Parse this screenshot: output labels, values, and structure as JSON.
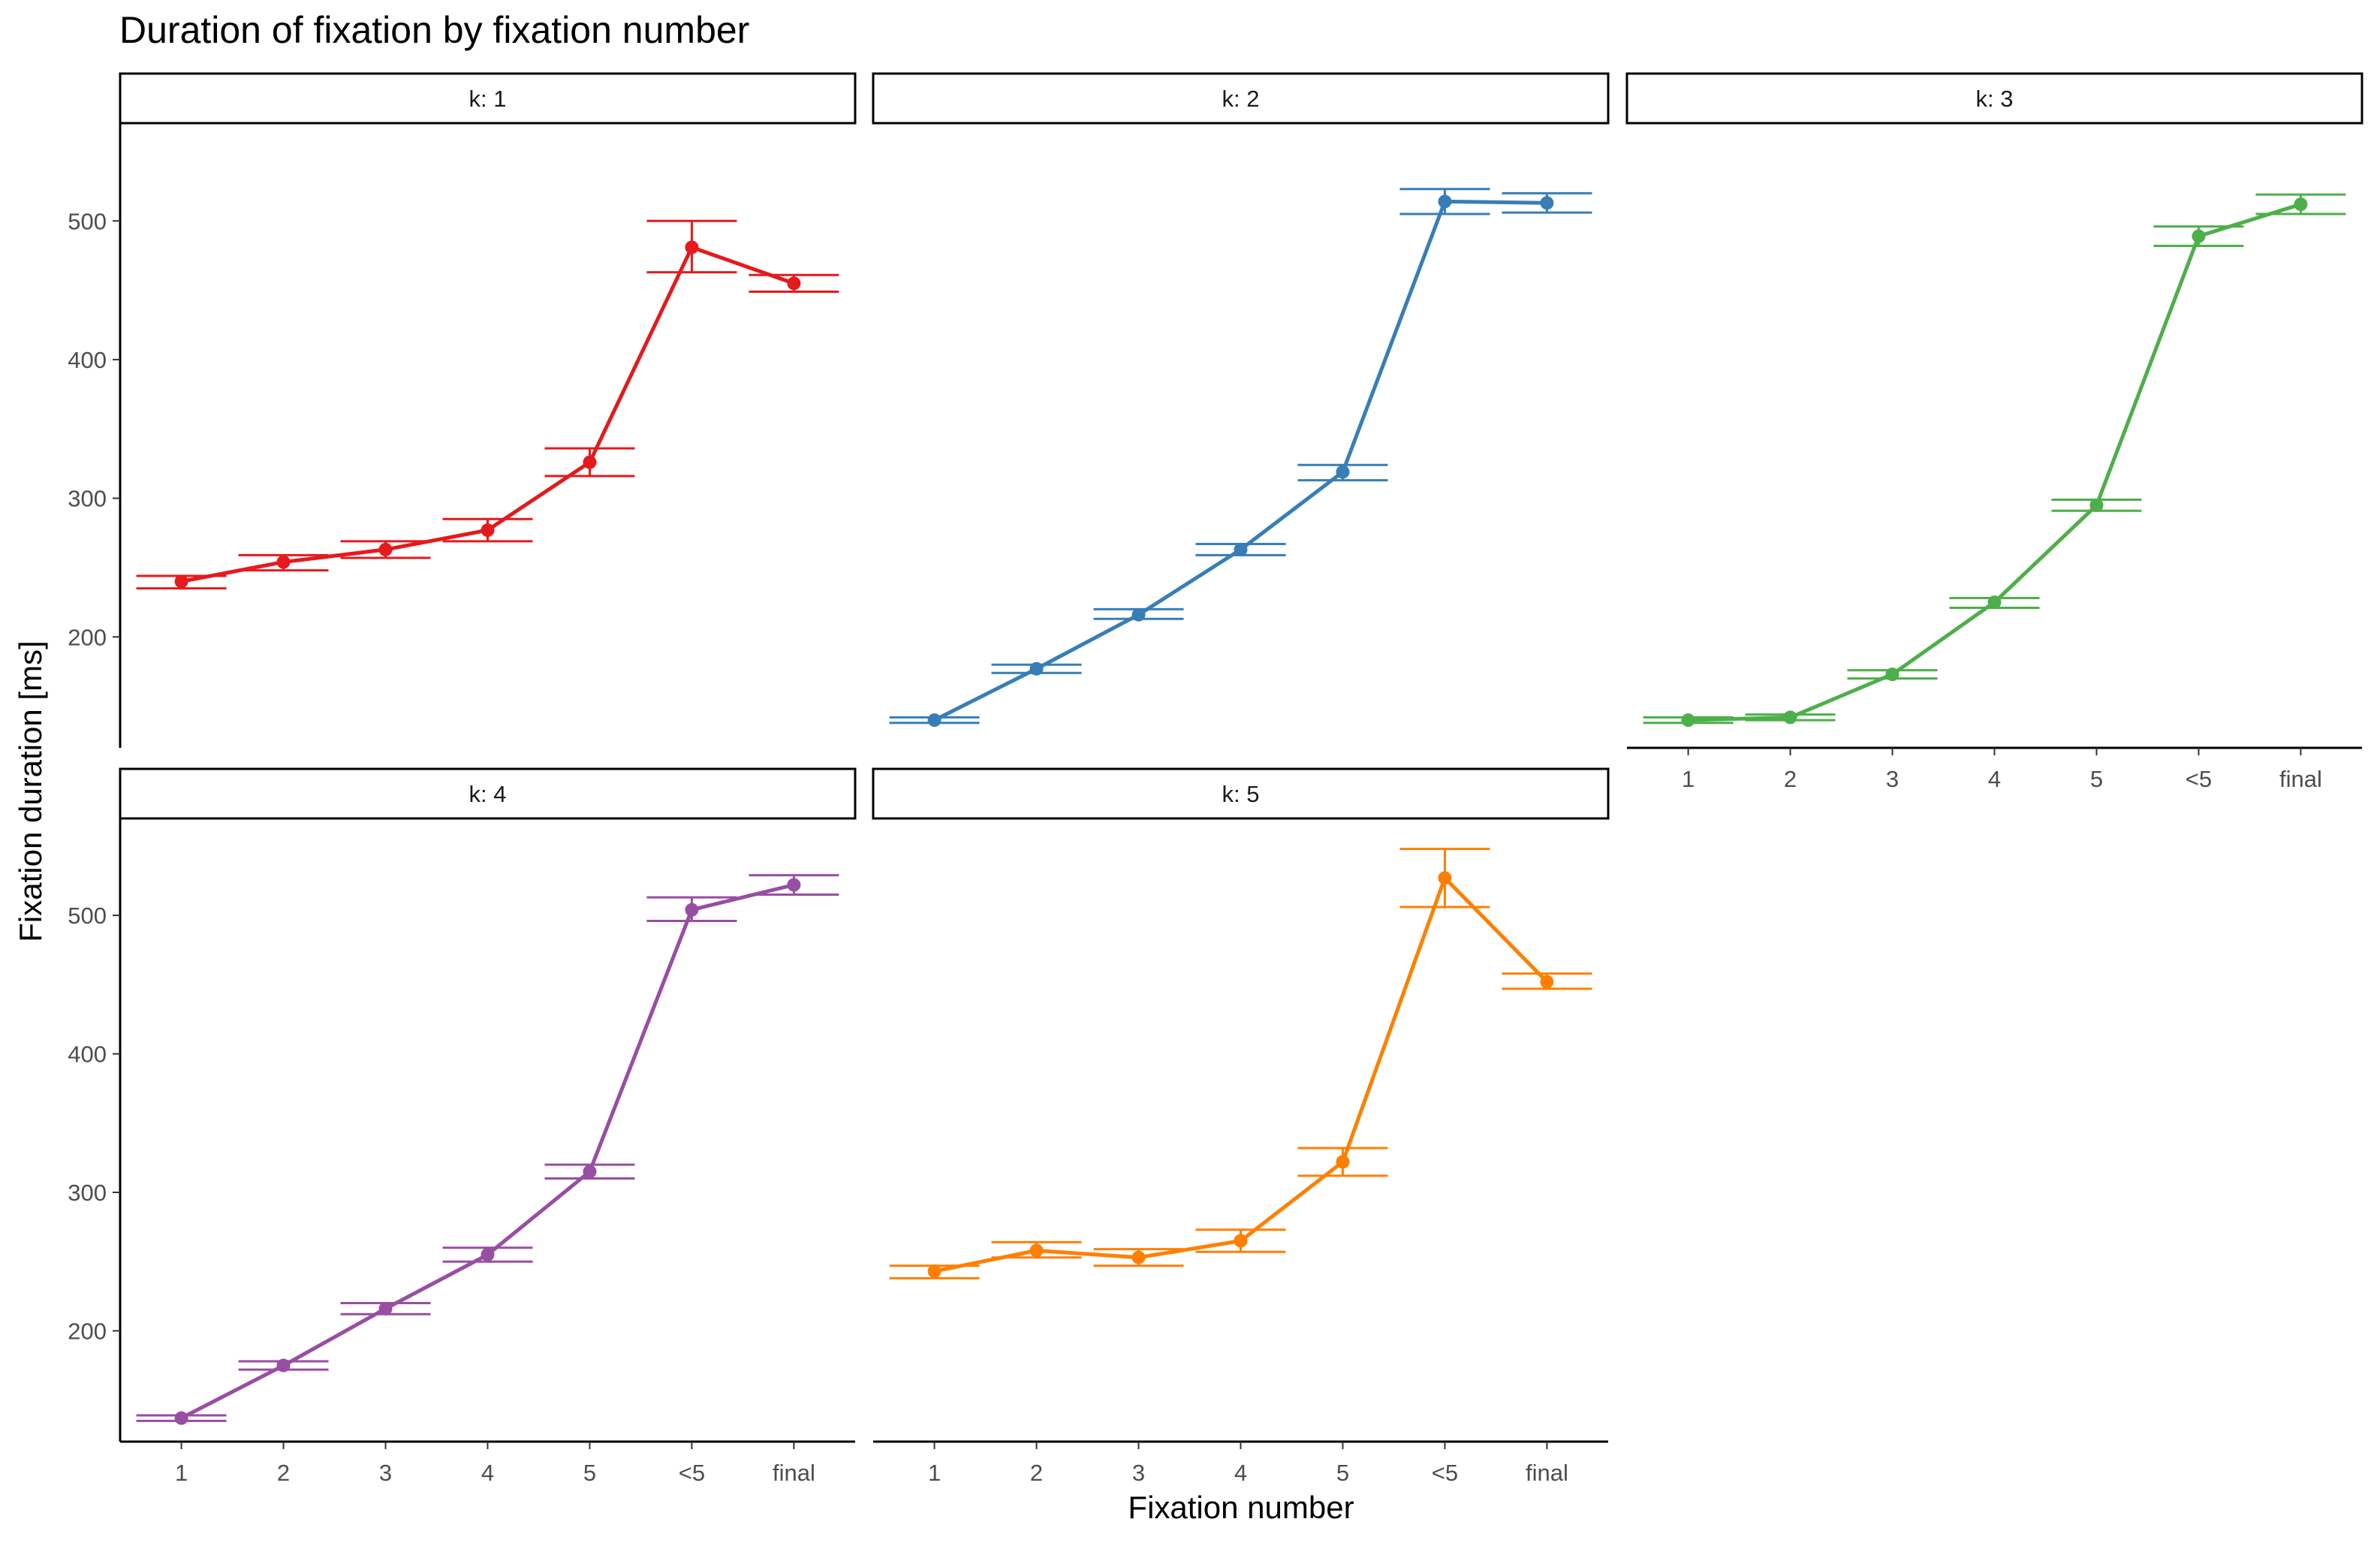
{
  "chart_data": {
    "type": "line",
    "title": "Duration of fixation by fixation number",
    "xlabel": "Fixation number",
    "ylabel": "Fixation duration [ms]",
    "categories": [
      "1",
      "2",
      "3",
      "4",
      "5",
      "<5",
      "final"
    ],
    "ylim": [
      120,
      570
    ],
    "yticks": [
      200,
      300,
      400,
      500
    ],
    "legend": "none",
    "panels": [
      {
        "label": "k: 1",
        "color": "#E41A1C",
        "values": [
          240,
          254,
          263,
          277,
          326,
          481,
          455
        ],
        "error_low": [
          235,
          248,
          257,
          269,
          316,
          463,
          449
        ],
        "error_high": [
          244,
          259,
          269,
          285,
          336,
          500,
          461
        ]
      },
      {
        "label": "k: 2",
        "color": "#377EB8",
        "values": [
          140,
          177,
          216,
          263,
          319,
          514,
          513
        ],
        "error_low": [
          138,
          174,
          213,
          259,
          313,
          505,
          506
        ],
        "error_high": [
          142,
          180,
          220,
          267,
          324,
          523,
          520
        ]
      },
      {
        "label": "k: 3",
        "color": "#4DAF4A",
        "values": [
          140,
          142,
          173,
          225,
          295,
          489,
          512
        ],
        "error_low": [
          138,
          140,
          170,
          221,
          291,
          482,
          505
        ],
        "error_high": [
          142,
          144,
          176,
          228,
          299,
          496,
          519
        ]
      },
      {
        "label": "k: 4",
        "color": "#984EA3",
        "values": [
          137,
          175,
          216,
          255,
          315,
          504,
          522
        ],
        "error_low": [
          135,
          172,
          212,
          250,
          310,
          496,
          515
        ],
        "error_high": [
          139,
          178,
          220,
          260,
          320,
          513,
          529
        ]
      },
      {
        "label": "k: 5",
        "color": "#FF7F00",
        "values": [
          243,
          258,
          253,
          265,
          322,
          527,
          452
        ],
        "error_low": [
          238,
          253,
          247,
          257,
          312,
          506,
          447
        ],
        "error_high": [
          247,
          264,
          259,
          273,
          332,
          548,
          458
        ]
      }
    ]
  }
}
